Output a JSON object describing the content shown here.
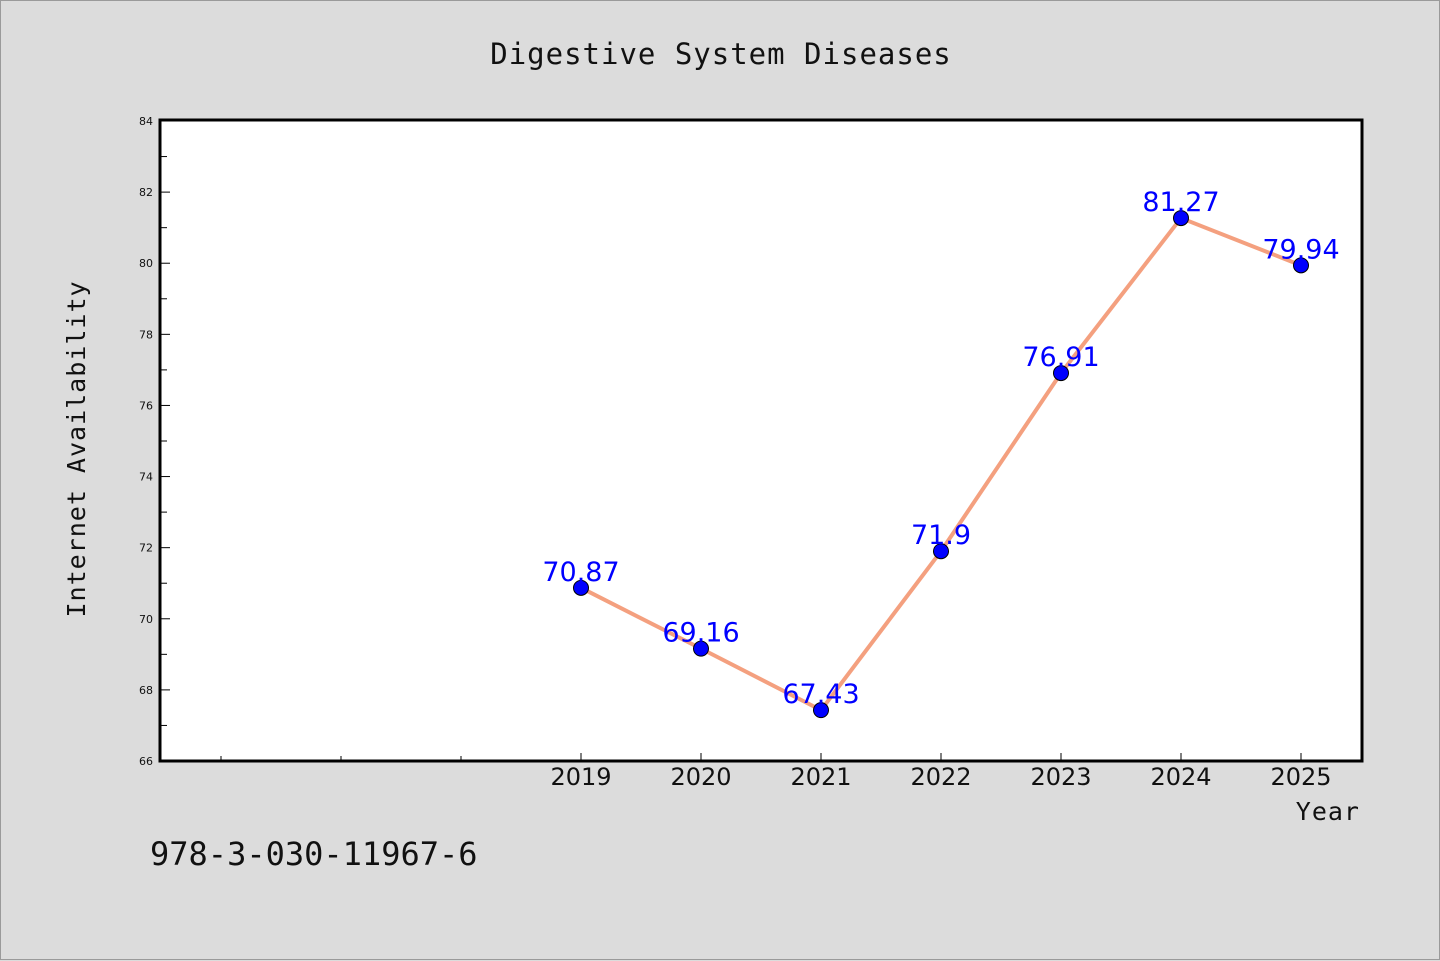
{
  "chart_data": {
    "type": "line",
    "title": "Digestive System Diseases",
    "xlabel": "Year",
    "ylabel": "Internet Availability",
    "categories": [
      "2019",
      "2020",
      "2021",
      "2022",
      "2023",
      "2024",
      "2025"
    ],
    "series": [
      {
        "values": [
          70.87,
          69.16,
          67.43,
          71.9,
          76.91,
          81.27,
          79.94
        ],
        "labels": [
          "70.87",
          "69.16",
          "67.43",
          "71.9",
          "76.91",
          "81.27",
          "79.94"
        ],
        "line_color": "#f4a07f",
        "marker_color": "#0000ff"
      }
    ],
    "ylim": [
      66,
      84
    ],
    "yticks": [
      66,
      68,
      70,
      72,
      74,
      76,
      78,
      80,
      82,
      84
    ],
    "grid": false,
    "legend": "none"
  },
  "footer_text": "978-3-030-11967-6"
}
